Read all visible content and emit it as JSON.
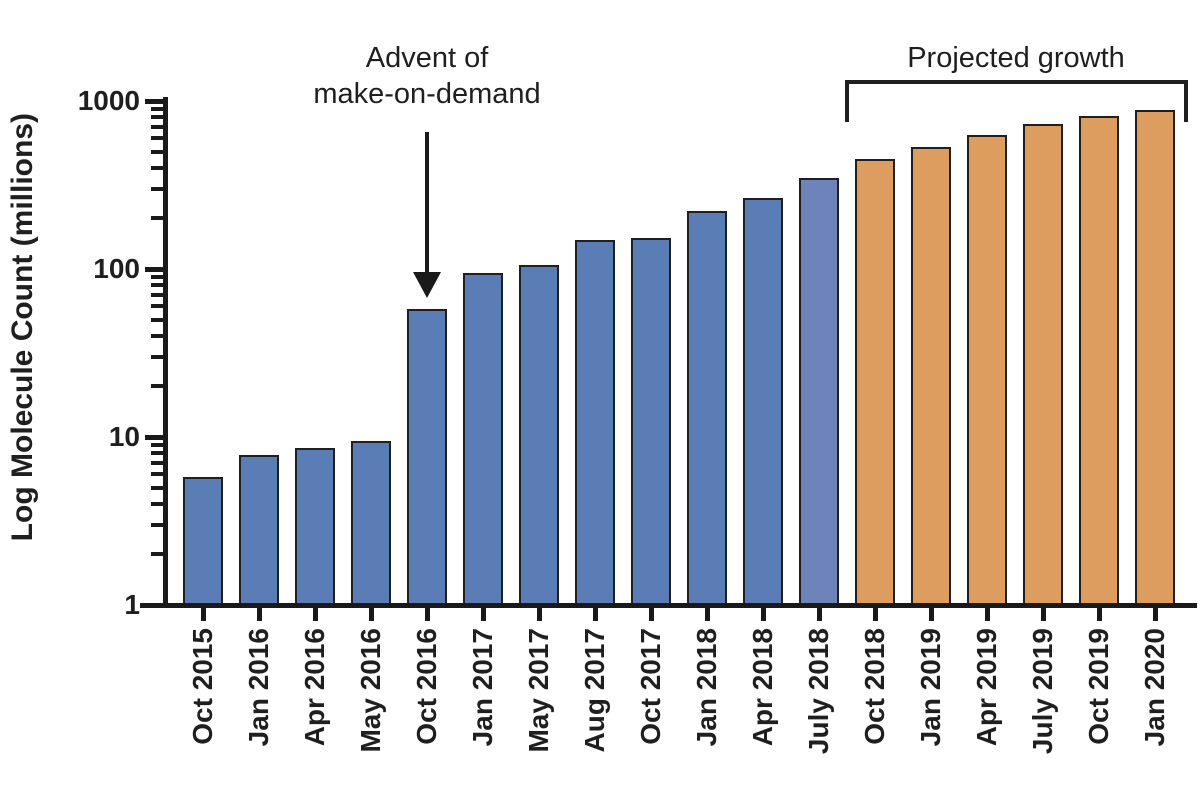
{
  "chart_data": {
    "type": "bar",
    "title": "",
    "xlabel": "",
    "ylabel": "Log Molecule Count (millions)",
    "scale": "log",
    "ylim": [
      1,
      1000
    ],
    "yticks": [
      "1",
      "10",
      "100",
      "1000"
    ],
    "grid": false,
    "legend_position": "none",
    "categories": [
      "Oct 2015",
      "Jan 2016",
      "Apr 2016",
      "May 2016",
      "Oct 2016",
      "Jan 2017",
      "May 2017",
      "Aug 2017",
      "Oct 2017",
      "Jan 2018",
      "Apr 2018",
      "July 2018",
      "Oct 2018",
      "Jan 2019",
      "Apr 2019",
      "July 2019",
      "Oct 2019",
      "Jan 2020"
    ],
    "series": [
      {
        "name": "Molecule count (millions)",
        "values": [
          5.8,
          7.8,
          8.6,
          9.5,
          58,
          95,
          105,
          148,
          152,
          220,
          265,
          350,
          450,
          530,
          630,
          730,
          810,
          880
        ]
      }
    ],
    "segments": [
      "actual",
      "actual",
      "actual",
      "actual",
      "actual",
      "actual",
      "actual",
      "actual",
      "actual",
      "actual",
      "actual",
      "actual_light",
      "projected",
      "projected",
      "projected",
      "projected",
      "projected",
      "projected"
    ],
    "annotations": {
      "advent_line1": "Advent of",
      "advent_line2": "make-on-demand",
      "advent_target_category": "Oct 2016",
      "projected_label": "Projected growth",
      "projected_from_category": "Oct 2018",
      "projected_to_category": "Jan 2020"
    },
    "colors": {
      "actual": "#5b7db5",
      "actual_light": "#6d83b9",
      "projected": "#dd9d5e",
      "outline": "#1f1f1f",
      "axis": "#1a1a1a",
      "text": "#1f1f1f",
      "background": "#ffffff"
    }
  }
}
